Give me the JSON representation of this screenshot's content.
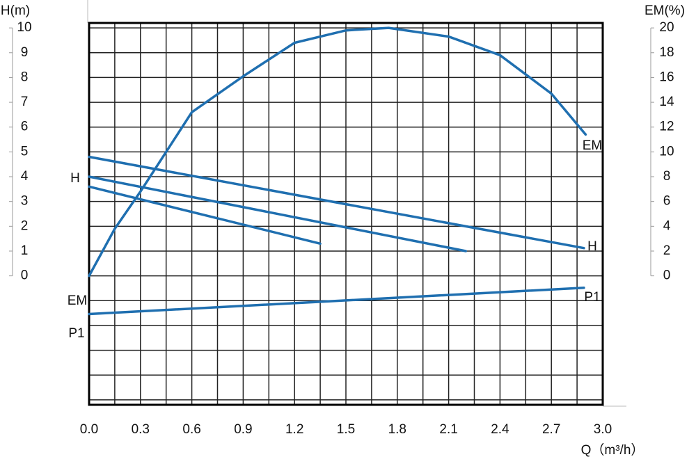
{
  "chart_data": {
    "type": "line",
    "y_label": "H(m)",
    "y2_label": "EM(%)",
    "x_label": "Q（m³/h）",
    "xlim": [
      0,
      3
    ],
    "xticks": [
      {
        "value": 0,
        "label": "0.0"
      },
      0.3,
      0.6,
      0.9,
      1.2,
      1.5,
      1.8,
      2.1,
      2.4,
      2.7,
      {
        "value": 3,
        "label": "3.0"
      }
    ],
    "ylim": [
      -5.2,
      10.2
    ],
    "yticks": [
      0,
      1,
      2,
      3,
      4,
      5,
      6,
      7,
      8,
      9,
      10
    ],
    "y2lim": [
      -10.4,
      20.4
    ],
    "y2ticks": [
      0,
      2,
      4,
      6,
      8,
      10,
      12,
      14,
      16,
      18,
      20
    ],
    "grid": true,
    "series": [
      {
        "color": "#1f6fb0",
        "x": [
          0,
          2.89
        ],
        "values": [
          4.8,
          1.12
        ]
      },
      {
        "color": "#1f6fb0",
        "x": [
          0,
          2.2
        ],
        "values": [
          4.0,
          1.0
        ]
      },
      {
        "color": "#1f6fb0",
        "x": [
          0,
          1.35
        ],
        "values": [
          3.6,
          1.3
        ]
      },
      {
        "color": "#1f6fb0",
        "axis": "y2",
        "x": [
          0,
          0.15,
          0.3,
          0.6,
          0.9,
          1.2,
          1.5,
          1.75,
          2.1,
          2.4,
          2.7,
          2.9
        ],
        "values": [
          0,
          3.8,
          6.8,
          13.2,
          16.1,
          18.8,
          19.8,
          20,
          19.3,
          17.8,
          14.7,
          11.4
        ]
      },
      {
        "color": "#1f6fb0",
        "x": [
          0,
          2.89
        ],
        "values": [
          -1.54,
          -0.48
        ]
      }
    ],
    "annotations": [
      "H",
      "H",
      "EM",
      "EM",
      "P1",
      "P1"
    ]
  }
}
